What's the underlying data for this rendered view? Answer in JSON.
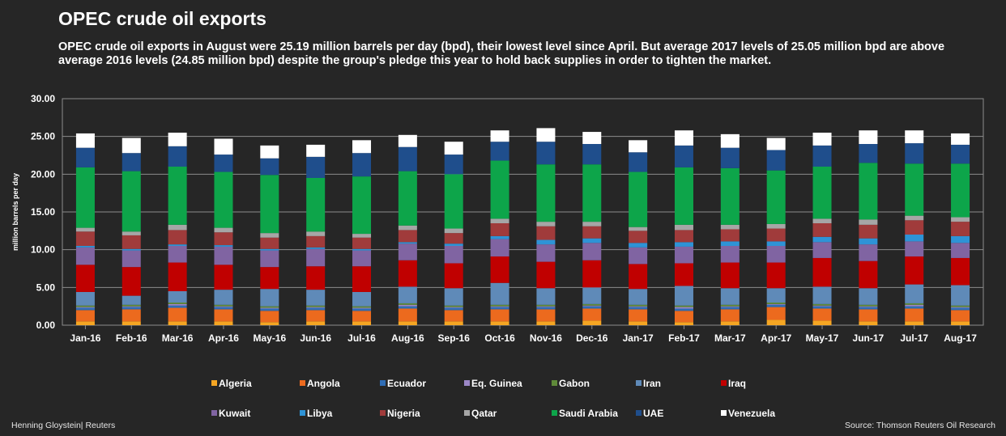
{
  "title": "OPEC crude oil exports",
  "subtitle": "OPEC crude oil exports in August were 25.19 million barrels per day (bpd), their lowest level since April. But average 2017 levels  of 25.05 million bpd are above average 2016 levels (24.85 million bpd) despite the group's pledge this year to hold back supplies in order to tighten the market.",
  "credit_left": "Henning Gloystein| Reuters",
  "credit_right": "Source: Thomson Reuters Oil Research",
  "chart_data": {
    "type": "bar",
    "stacked": true,
    "ylabel": "million barrels per day",
    "xlabel": "",
    "ylim": [
      0,
      30
    ],
    "yticks": [
      "0.00",
      "5.00",
      "10.00",
      "15.00",
      "20.00",
      "25.00",
      "30.00"
    ],
    "grid": true,
    "legend_position": "bottom",
    "categories": [
      "Jan-16",
      "Feb-16",
      "Mar-16",
      "Apr-16",
      "May-16",
      "Jun-16",
      "Jul-16",
      "Aug-16",
      "Sep-16",
      "Oct-16",
      "Nov-16",
      "Dec-16",
      "Jan-17",
      "Feb-17",
      "Mar-17",
      "Apr-17",
      "May-17",
      "Jun-17",
      "Jul-17",
      "Aug-17"
    ],
    "series": [
      {
        "name": "Algeria",
        "color": "#f5a623",
        "values": [
          0.5,
          0.5,
          0.5,
          0.5,
          0.4,
          0.5,
          0.5,
          0.5,
          0.5,
          0.5,
          0.5,
          0.6,
          0.5,
          0.4,
          0.5,
          0.7,
          0.6,
          0.5,
          0.5,
          0.5
        ]
      },
      {
        "name": "Angola",
        "color": "#ec6a1e",
        "values": [
          1.5,
          1.6,
          1.8,
          1.6,
          1.5,
          1.5,
          1.4,
          1.7,
          1.5,
          1.6,
          1.6,
          1.6,
          1.6,
          1.5,
          1.6,
          1.7,
          1.6,
          1.6,
          1.7,
          1.5
        ]
      },
      {
        "name": "Ecuador",
        "color": "#2f6db5",
        "values": [
          0.3,
          0.3,
          0.3,
          0.3,
          0.3,
          0.3,
          0.3,
          0.3,
          0.3,
          0.3,
          0.3,
          0.3,
          0.3,
          0.3,
          0.3,
          0.3,
          0.3,
          0.3,
          0.3,
          0.3
        ]
      },
      {
        "name": "Eq. Guinea",
        "color": "#9b87c6",
        "values": [
          0.1,
          0.1,
          0.2,
          0.1,
          0.1,
          0.1,
          0.1,
          0.2,
          0.1,
          0.1,
          0.1,
          0.1,
          0.1,
          0.2,
          0.1,
          0.1,
          0.1,
          0.1,
          0.2,
          0.1
        ]
      },
      {
        "name": "Gabon",
        "color": "#5f8a39",
        "values": [
          0.2,
          0.2,
          0.2,
          0.2,
          0.2,
          0.2,
          0.2,
          0.2,
          0.2,
          0.2,
          0.2,
          0.2,
          0.2,
          0.2,
          0.2,
          0.2,
          0.2,
          0.2,
          0.2,
          0.2
        ]
      },
      {
        "name": "Iran",
        "color": "#5f8ab8",
        "values": [
          1.8,
          1.2,
          1.5,
          2.0,
          2.3,
          2.1,
          1.9,
          2.2,
          2.3,
          2.9,
          2.2,
          2.2,
          2.1,
          2.6,
          2.2,
          1.9,
          2.3,
          2.2,
          2.5,
          2.7
        ]
      },
      {
        "name": "Iraq",
        "color": "#c00000",
        "values": [
          3.6,
          3.8,
          3.8,
          3.3,
          2.9,
          3.1,
          3.4,
          3.5,
          3.3,
          3.5,
          3.5,
          3.6,
          3.3,
          3.0,
          3.4,
          3.4,
          3.8,
          3.6,
          3.7,
          3.6
        ]
      },
      {
        "name": "Kuwait",
        "color": "#8064a2",
        "values": [
          2.3,
          2.2,
          2.2,
          2.4,
          2.2,
          2.3,
          2.1,
          2.2,
          2.3,
          2.3,
          2.3,
          2.3,
          2.2,
          2.2,
          2.2,
          2.2,
          2.1,
          2.2,
          2.0,
          2.0
        ]
      },
      {
        "name": "Libya",
        "color": "#2e93d6",
        "values": [
          0.2,
          0.2,
          0.2,
          0.2,
          0.2,
          0.2,
          0.2,
          0.2,
          0.3,
          0.4,
          0.6,
          0.6,
          0.6,
          0.6,
          0.6,
          0.6,
          0.7,
          0.8,
          0.9,
          0.9
        ]
      },
      {
        "name": "Nigeria",
        "color": "#a03b3b",
        "values": [
          1.9,
          1.8,
          1.9,
          1.7,
          1.5,
          1.5,
          1.5,
          1.6,
          1.4,
          1.7,
          1.8,
          1.6,
          1.6,
          1.6,
          1.6,
          1.7,
          1.8,
          1.8,
          1.9,
          1.9
        ]
      },
      {
        "name": "Qatar",
        "color": "#a6a6a6",
        "values": [
          0.5,
          0.5,
          0.7,
          0.6,
          0.6,
          0.6,
          0.5,
          0.6,
          0.6,
          0.6,
          0.6,
          0.6,
          0.5,
          0.7,
          0.6,
          0.6,
          0.6,
          0.7,
          0.6,
          0.6
        ]
      },
      {
        "name": "Saudi Arabia",
        "color": "#0da54a",
        "values": [
          8.0,
          8.0,
          7.7,
          7.4,
          7.7,
          7.1,
          7.6,
          7.2,
          7.2,
          7.7,
          7.6,
          7.6,
          7.3,
          7.6,
          7.5,
          7.1,
          6.9,
          7.5,
          6.9,
          7.1
        ]
      },
      {
        "name": "UAE",
        "color": "#1f4e8c",
        "values": [
          2.6,
          2.4,
          2.7,
          2.3,
          2.2,
          2.8,
          3.1,
          3.2,
          2.6,
          2.5,
          3.0,
          2.7,
          2.6,
          2.9,
          2.7,
          2.7,
          2.8,
          2.5,
          2.7,
          2.5
        ]
      },
      {
        "name": "Venezuela",
        "color": "#ffffff",
        "values": [
          1.9,
          2.0,
          1.8,
          2.1,
          1.7,
          1.6,
          1.7,
          1.6,
          1.7,
          1.5,
          1.8,
          1.6,
          1.6,
          2.0,
          1.8,
          1.6,
          1.7,
          1.8,
          1.7,
          1.5
        ]
      }
    ]
  }
}
